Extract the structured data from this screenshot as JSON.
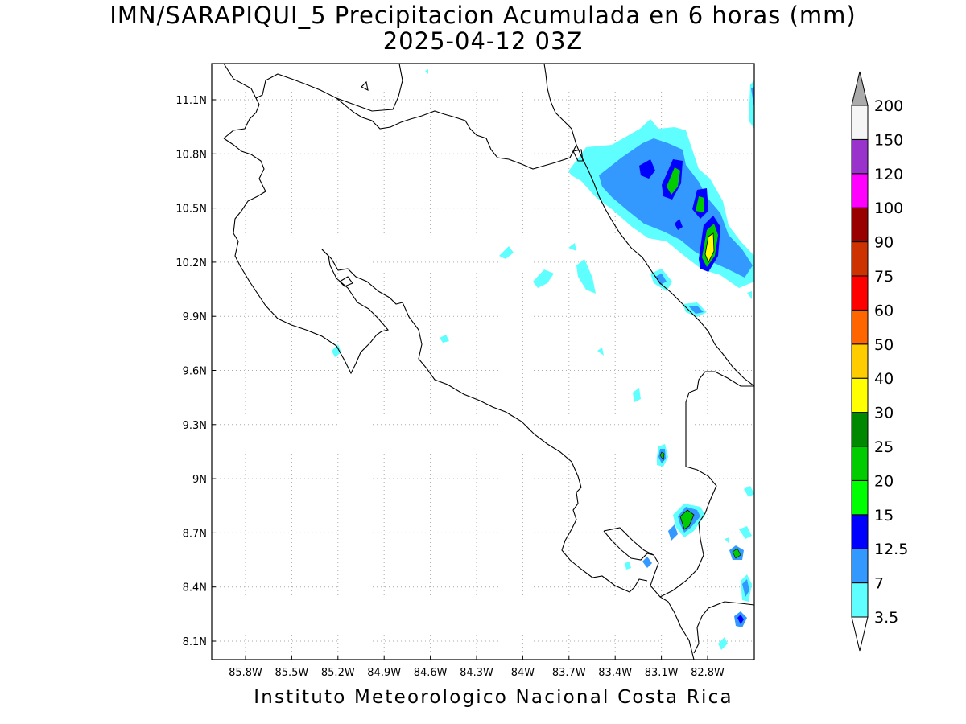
{
  "title": {
    "line1": "IMN/SARAPIQUI_5 Precipitacion Acumulada en 6 horas (mm)",
    "line2": "2025-04-12 03Z"
  },
  "footer": "Instituto Meteorologico Nacional Costa Rica",
  "map": {
    "lat_labels": [
      "11.1N",
      "10.8N",
      "10.5N",
      "10.2N",
      "9.9N",
      "9.6N",
      "9.3N",
      "9N",
      "8.7N",
      "8.4N",
      "8.1N"
    ],
    "lon_labels": [
      "85.8W",
      "85.5W",
      "85.2W",
      "84.9W",
      "84.6W",
      "84.3W",
      "84W",
      "83.7W",
      "83.4W",
      "83.1W",
      "82.8W"
    ],
    "grid": "dotted"
  },
  "colorbar": {
    "labels": [
      "3.5",
      "7",
      "12.5",
      "15",
      "20",
      "25",
      "30",
      "40",
      "50",
      "60",
      "75",
      "90",
      "100",
      "120",
      "150",
      "200"
    ],
    "colors": [
      "#ffffff",
      "#60ffff",
      "#3399ff",
      "#0000ff",
      "#00ff00",
      "#00cc00",
      "#008800",
      "#ffff00",
      "#ffcc00",
      "#ff6600",
      "#ff0000",
      "#cc3300",
      "#990000",
      "#ff00ff",
      "#9933cc",
      "#f5f5f5",
      "#aaaaaa"
    ]
  }
}
